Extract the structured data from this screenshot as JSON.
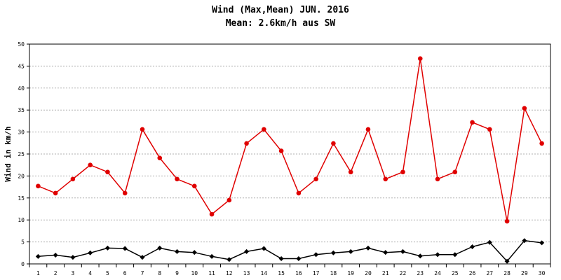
{
  "chart_data": {
    "type": "line",
    "title": "Wind (Max,Mean) JUN. 2016",
    "subtitle": "Mean: 2.6km/h aus SW",
    "xlabel": "",
    "ylabel": "Wind in km/h",
    "ylim": [
      0,
      50
    ],
    "yticks": [
      0,
      5,
      10,
      15,
      20,
      25,
      30,
      35,
      40,
      45,
      50
    ],
    "grid": true,
    "legend": "none",
    "categories": [
      "1",
      "2",
      "3",
      "4",
      "5",
      "6",
      "7",
      "8",
      "9",
      "10",
      "11",
      "12",
      "13",
      "14",
      "15",
      "16",
      "17",
      "18",
      "19",
      "20",
      "21",
      "22",
      "23",
      "24",
      "25",
      "26",
      "27",
      "28",
      "29",
      "30"
    ],
    "series": [
      {
        "color": "#e00000",
        "marker": "circle",
        "values": [
          17.7,
          16.1,
          19.3,
          22.5,
          20.9,
          16.1,
          30.6,
          24.1,
          19.3,
          17.7,
          11.3,
          14.5,
          27.4,
          30.6,
          25.7,
          16.1,
          19.3,
          27.4,
          20.9,
          30.6,
          19.3,
          20.9,
          46.7,
          19.3,
          20.9,
          32.2,
          30.6,
          9.7,
          35.4,
          27.4
        ]
      },
      {
        "color": "#000000",
        "marker": "diamond",
        "values": [
          1.7,
          2.0,
          1.5,
          2.5,
          3.6,
          3.5,
          1.5,
          3.6,
          2.8,
          2.6,
          1.7,
          1.0,
          2.8,
          3.5,
          1.2,
          1.2,
          2.1,
          2.5,
          2.8,
          3.6,
          2.6,
          2.8,
          1.8,
          2.1,
          2.1,
          3.9,
          4.9,
          0.6,
          5.3,
          4.8
        ]
      }
    ]
  }
}
